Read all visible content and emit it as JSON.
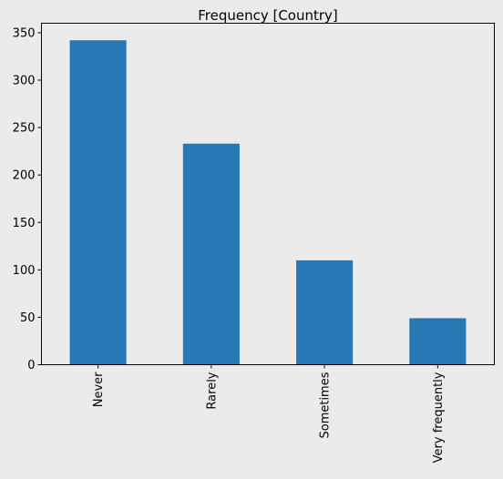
{
  "chart_data": {
    "type": "bar",
    "title": "Frequency [Country]",
    "xlabel": "",
    "ylabel": "",
    "categories": [
      "Never",
      "Rarely",
      "Sometimes",
      "Very frequently"
    ],
    "values": [
      342,
      233,
      110,
      49
    ],
    "ylim": [
      0,
      360
    ],
    "yticks": [
      0,
      50,
      100,
      150,
      200,
      250,
      300,
      350
    ],
    "bar_color": "#2878b5",
    "background_color": "#ebebeb",
    "grid": false,
    "x_tick_rotation": "vertical"
  }
}
